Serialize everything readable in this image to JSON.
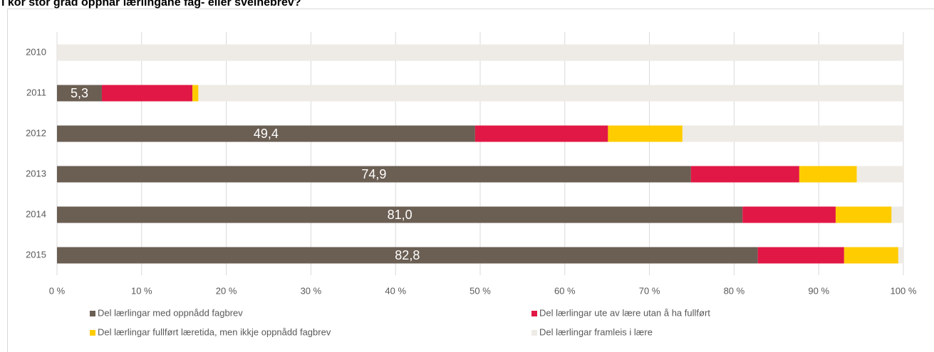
{
  "chart_data": {
    "type": "stacked-bar-horizontal",
    "title": "I kor stor grad oppnår lærlingane fag- eller sveinebrev?",
    "categories": [
      "2010",
      "2011",
      "2012",
      "2013",
      "2014",
      "2015"
    ],
    "series": [
      {
        "name": "Del lærlingar med oppnådd fagbrev",
        "color": "#6b5e53",
        "values": [
          0,
          5.3,
          49.4,
          74.9,
          81.0,
          82.8
        ],
        "value_labels": [
          null,
          "5,3",
          "49,4",
          "74,9",
          "81,0",
          "82,8"
        ]
      },
      {
        "name": "Del lærlingar ute av lære utan å ha fullført",
        "color": "#e11845",
        "values": [
          0,
          10.7,
          15.7,
          12.8,
          11.0,
          10.2
        ]
      },
      {
        "name": "Del lærlingar fullført læretida, men ikkje oppnådd fagbrev",
        "color": "#ffcc00",
        "values": [
          0,
          0.7,
          8.8,
          6.8,
          6.6,
          6.4
        ]
      },
      {
        "name": "Del lærlingar framleis i lære",
        "color": "#eeebe6",
        "values": [
          100,
          83.3,
          26.1,
          5.5,
          1.4,
          0.6
        ]
      }
    ],
    "xlim": [
      0,
      100
    ],
    "xticks": [
      {
        "value": 0,
        "label": "0 %"
      },
      {
        "value": 10,
        "label": "10 %"
      },
      {
        "value": 20,
        "label": "20 %"
      },
      {
        "value": 30,
        "label": "30 %"
      },
      {
        "value": 40,
        "label": "40 %"
      },
      {
        "value": 50,
        "label": "50 %"
      },
      {
        "value": 60,
        "label": "60 %"
      },
      {
        "value": 70,
        "label": "70 %"
      },
      {
        "value": 80,
        "label": "80 %"
      },
      {
        "value": 90,
        "label": "90 %"
      },
      {
        "value": 100,
        "label": "100 %"
      }
    ],
    "grid": true,
    "legend": "bottom"
  }
}
